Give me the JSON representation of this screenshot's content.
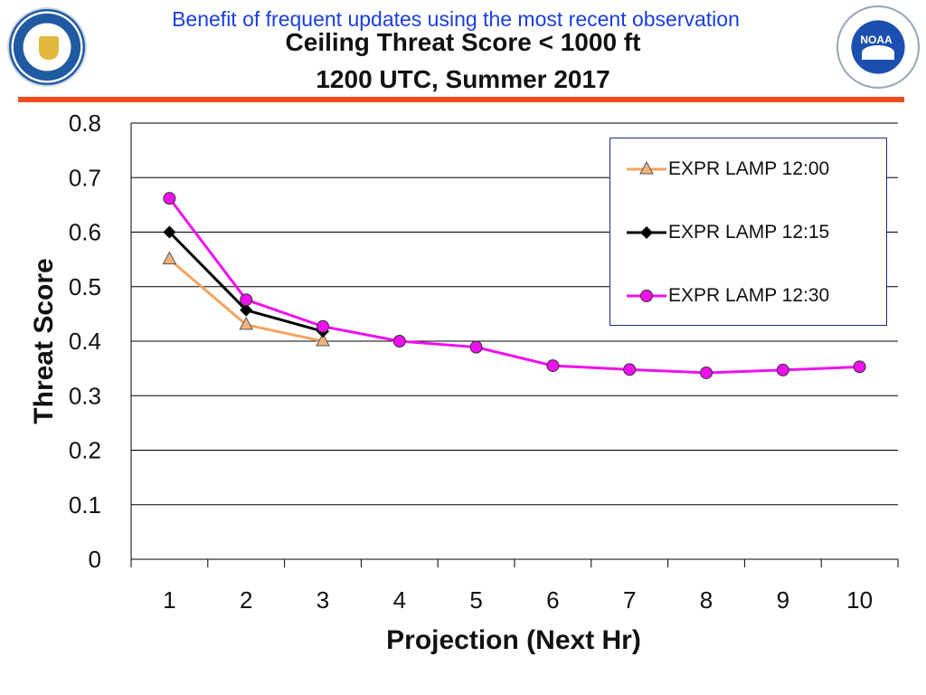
{
  "header": {
    "note": "Benefit of frequent updates using the most recent observation",
    "title_line1": "Ceiling Threat Score < 1000 ft",
    "title_line2": "1200 UTC, Summer 2017"
  },
  "logos": {
    "left": "US Department of Commerce seal",
    "right_text": "NOAA"
  },
  "colors": {
    "accent_rule": "#ee4a1c",
    "header_note": "#1a3ee0"
  },
  "chart_data": {
    "type": "line",
    "title": "Ceiling Threat Score < 1000 ft",
    "subtitle": "1200 UTC, Summer 2017",
    "xlabel": "Projection (Next Hr)",
    "ylabel": "Threat Score",
    "x": [
      1,
      2,
      3,
      4,
      5,
      6,
      7,
      8,
      9,
      10
    ],
    "ylim": [
      0,
      0.8
    ],
    "yticks": [
      "0",
      "0.1",
      "0.2",
      "0.3",
      "0.4",
      "0.5",
      "0.6",
      "0.7",
      "0.8"
    ],
    "grid": true,
    "legend_position": "top-right",
    "series": [
      {
        "name": "EXPR LAMP 12:00",
        "color": "#f4a460",
        "marker": "triangle",
        "marker_color": "#f3b27a",
        "x": [
          1,
          2,
          3
        ],
        "values": [
          0.55,
          0.43,
          0.4
        ]
      },
      {
        "name": "EXPR LAMP 12:15",
        "color": "#000000",
        "marker": "diamond",
        "marker_color": "#000000",
        "x": [
          1,
          2,
          3
        ],
        "values": [
          0.6,
          0.457,
          0.418
        ]
      },
      {
        "name": "EXPR LAMP 12:30",
        "color": "#ee11ee",
        "marker": "circle",
        "marker_color": "#ee11ee",
        "x": [
          1,
          2,
          3,
          4,
          5,
          6,
          7,
          8,
          9,
          10
        ],
        "values": [
          0.662,
          0.476,
          0.427,
          0.4,
          0.389,
          0.355,
          0.348,
          0.342,
          0.347,
          0.353
        ]
      }
    ]
  }
}
